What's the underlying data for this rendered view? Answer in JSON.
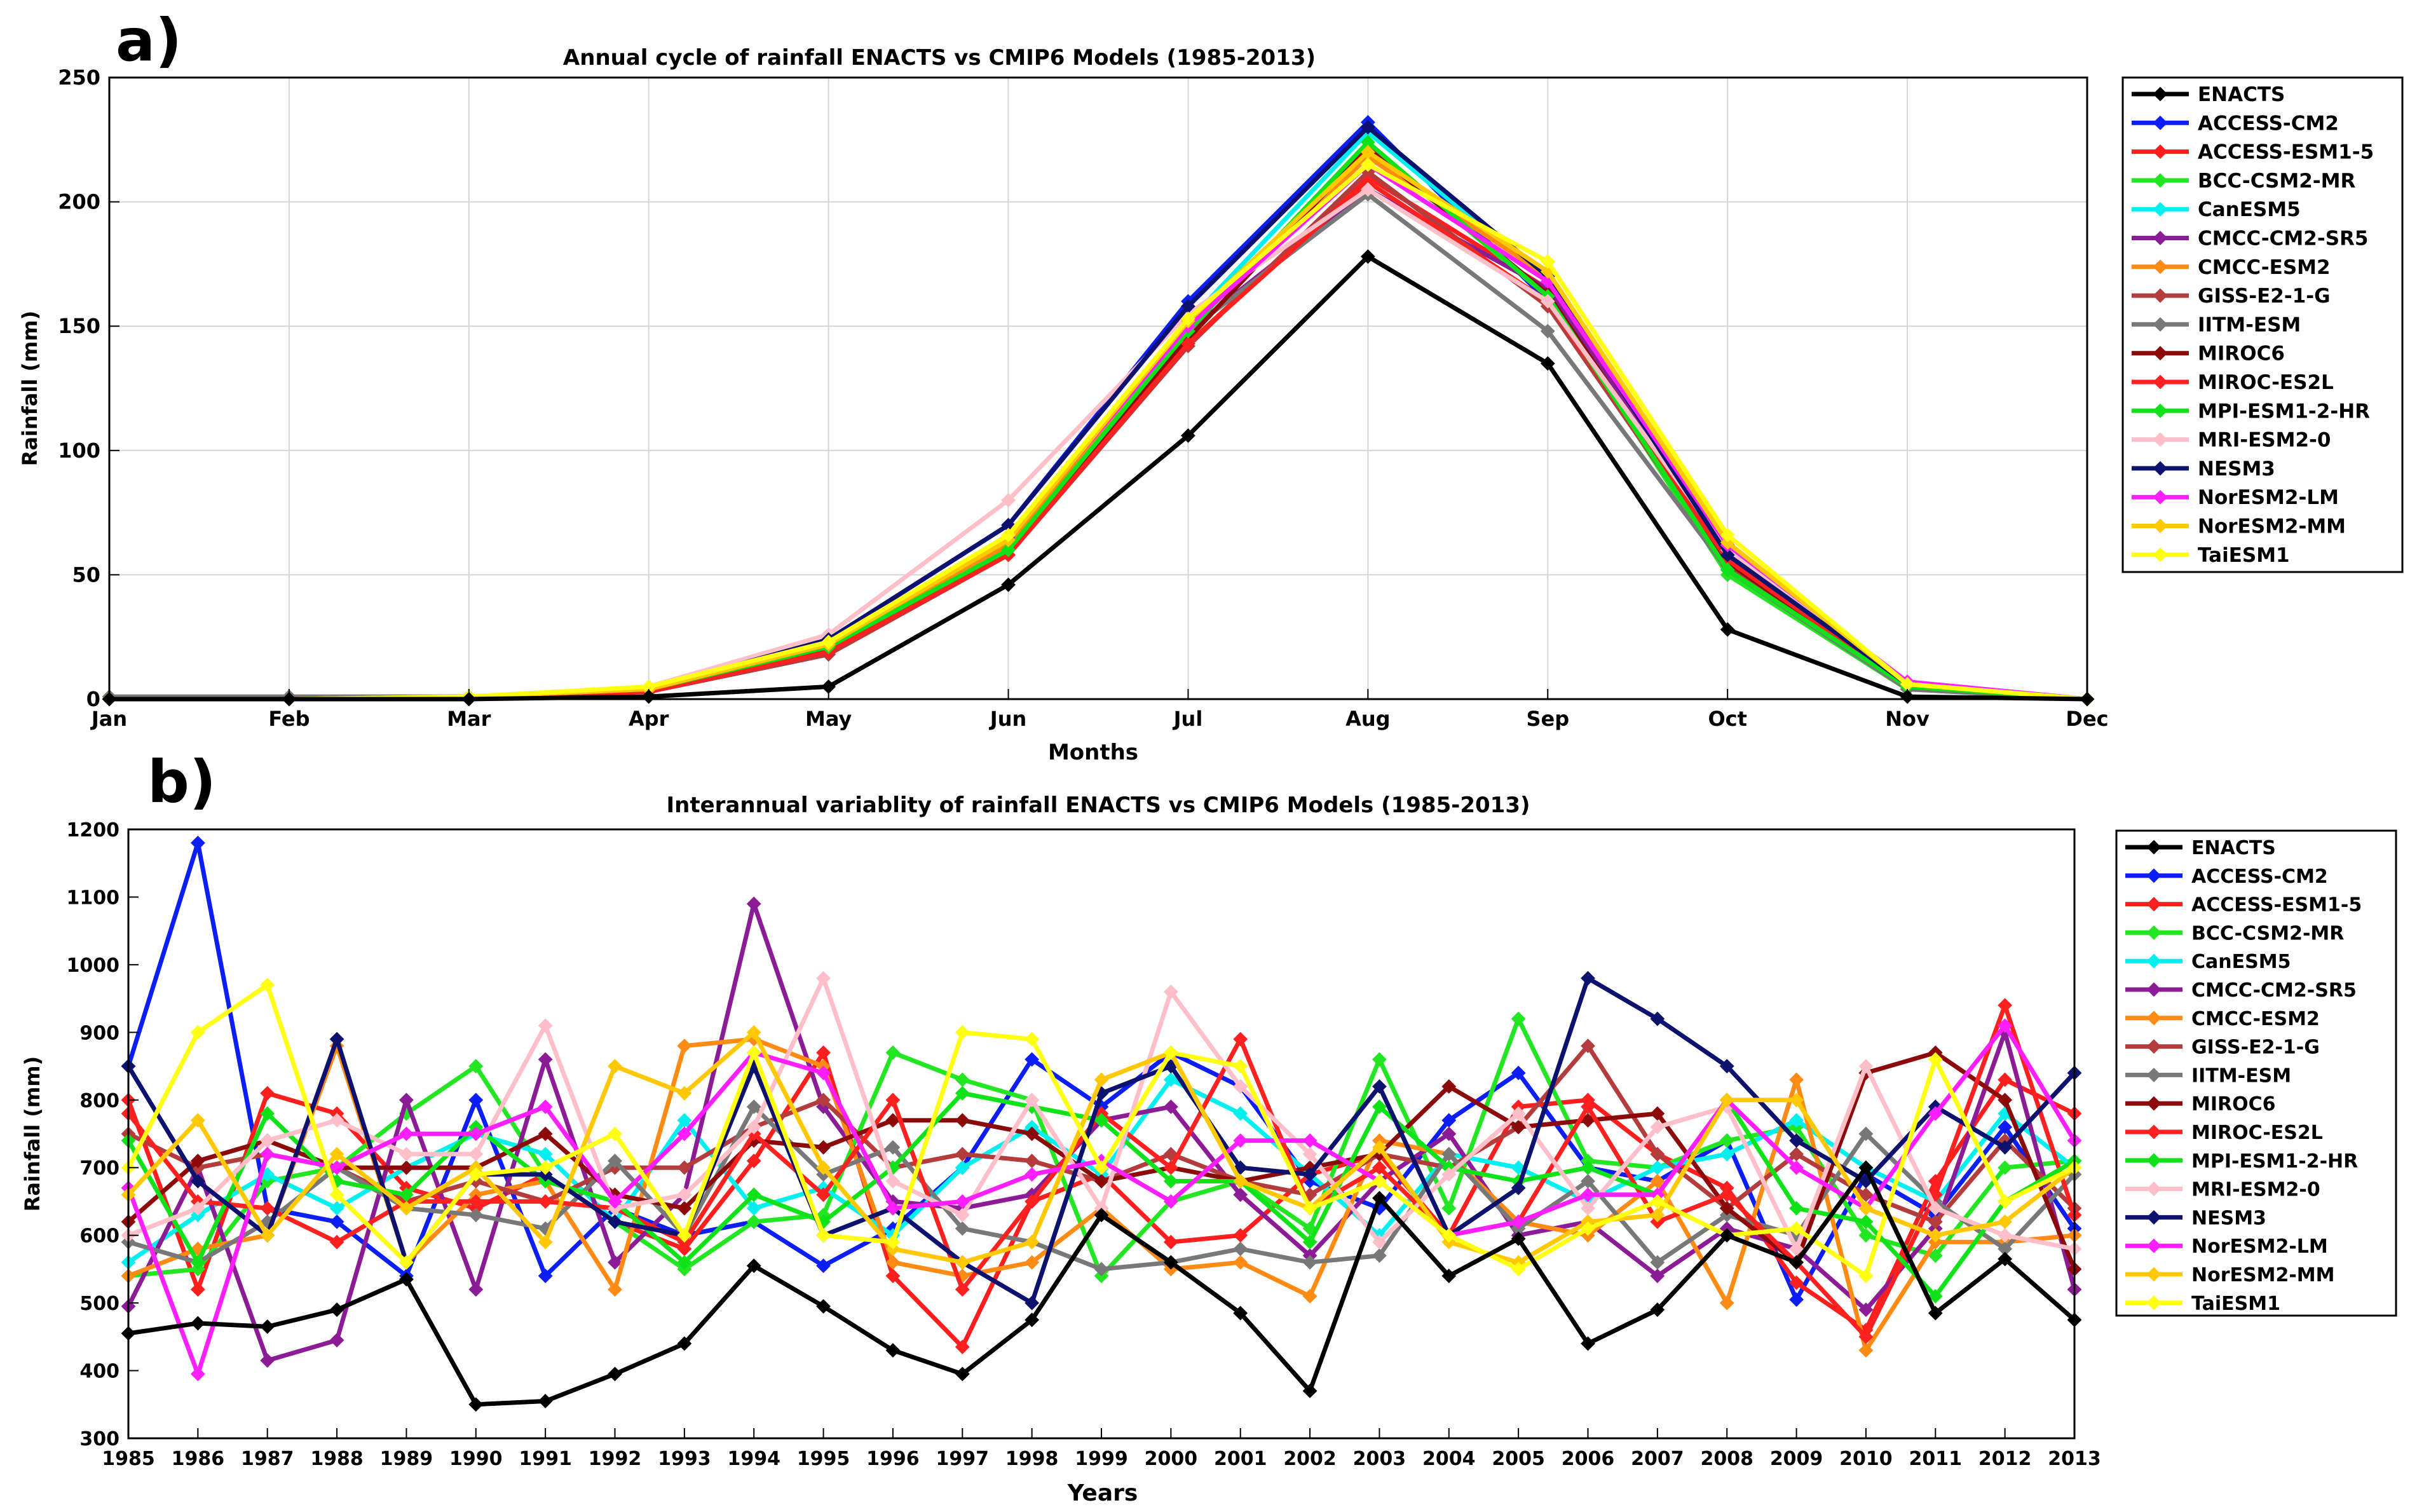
{
  "colors": {
    "ENACTS": "#000000",
    "ACCESS-CM2": "#0a1ef5",
    "ACCESS-ESM1-5": "#ff1e1e",
    "BCC-CSM2-MR": "#22e622",
    "CanESM5": "#00f0f0",
    "CMCC-CM2-SR5": "#8c1c96",
    "CMCC-ESM2": "#ff8a14",
    "GISS-E2-1-G": "#b43c3c",
    "IITM-ESM": "#787878",
    "MIROC6": "#8c0a0a",
    "MIROC-ES2L": "#ff2020",
    "MPI-ESM1-2-HR": "#10e21a",
    "MRI-ESM2-0": "#ffbfc8",
    "NESM3": "#0c126e",
    "NorESM2-LM": "#ff1eff",
    "NorESM2-MM": "#ffc800",
    "TaiESM1": "#ffff10"
  },
  "chart_data": [
    {
      "panel_label": "a)",
      "type": "line",
      "title": "Annual cycle of rainfall ENACTS vs CMIP6 Models (1985-2013)",
      "xlabel": "Months",
      "ylabel": "Rainfall (mm)",
      "ylim": [
        0,
        250
      ],
      "yticks": [
        0,
        50,
        100,
        150,
        200,
        250
      ],
      "grid": true,
      "legend": "outside-right",
      "categories": [
        "Jan",
        "Feb",
        "Mar",
        "Apr",
        "May",
        "Jun",
        "Jul",
        "Aug",
        "Sep",
        "Oct",
        "Nov",
        "Dec"
      ],
      "series": [
        {
          "name": "ENACTS",
          "values": [
            0,
            0,
            0,
            1,
            5,
            46,
            106,
            178,
            135,
            28,
            1,
            0
          ]
        },
        {
          "name": "ACCESS-CM2",
          "values": [
            0,
            0,
            1,
            3,
            24,
            70,
            160,
            232,
            160,
            57,
            6,
            0
          ]
        },
        {
          "name": "ACCESS-ESM1-5",
          "values": [
            0,
            0,
            0,
            3,
            19,
            60,
            143,
            210,
            165,
            55,
            5,
            0
          ]
        },
        {
          "name": "BCC-CSM2-MR",
          "values": [
            0,
            0,
            1,
            3,
            20,
            58,
            145,
            222,
            162,
            50,
            4,
            0
          ]
        },
        {
          "name": "CanESM5",
          "values": [
            0,
            0,
            1,
            4,
            22,
            62,
            152,
            228,
            168,
            58,
            6,
            0
          ]
        },
        {
          "name": "CMCC-CM2-SR5",
          "values": [
            0,
            0,
            1,
            3,
            18,
            62,
            148,
            205,
            165,
            60,
            6,
            0
          ]
        },
        {
          "name": "CMCC-ESM2",
          "values": [
            0,
            0,
            1,
            4,
            22,
            62,
            150,
            218,
            170,
            62,
            5,
            0
          ]
        },
        {
          "name": "GISS-E2-1-G",
          "values": [
            0,
            0,
            1,
            3,
            18,
            58,
            142,
            212,
            158,
            54,
            5,
            0
          ]
        },
        {
          "name": "IITM-ESM",
          "values": [
            1,
            1,
            1,
            3,
            20,
            60,
            148,
            203,
            148,
            52,
            4,
            0
          ]
        },
        {
          "name": "MIROC6",
          "values": [
            0,
            0,
            1,
            3,
            20,
            60,
            145,
            222,
            163,
            55,
            5,
            0
          ]
        },
        {
          "name": "MIROC-ES2L",
          "values": [
            0,
            0,
            0,
            3,
            19,
            58,
            143,
            208,
            160,
            56,
            5,
            0
          ]
        },
        {
          "name": "MPI-ESM1-2-HR",
          "values": [
            0,
            0,
            1,
            4,
            21,
            60,
            148,
            224,
            162,
            52,
            5,
            0
          ]
        },
        {
          "name": "MRI-ESM2-0",
          "values": [
            0,
            0,
            1,
            5,
            26,
            80,
            155,
            205,
            160,
            60,
            6,
            0
          ]
        },
        {
          "name": "NESM3",
          "values": [
            0,
            0,
            1,
            4,
            24,
            70,
            158,
            230,
            170,
            58,
            6,
            0
          ]
        },
        {
          "name": "NorESM2-LM",
          "values": [
            0,
            0,
            1,
            4,
            22,
            65,
            150,
            215,
            168,
            62,
            7,
            0
          ]
        },
        {
          "name": "NorESM2-MM",
          "values": [
            0,
            0,
            1,
            4,
            22,
            64,
            152,
            220,
            172,
            63,
            6,
            0
          ]
        },
        {
          "name": "TaiESM1",
          "values": [
            0,
            0,
            1,
            5,
            23,
            66,
            153,
            215,
            176,
            66,
            6,
            0
          ]
        }
      ]
    },
    {
      "panel_label": "b)",
      "type": "line",
      "title": "Interannual variablity of rainfall ENACTS vs CMIP6 Models (1985-2013)",
      "xlabel": "Years",
      "ylabel": "Rainfall (mm)",
      "ylim": [
        300,
        1200
      ],
      "yticks": [
        300,
        400,
        500,
        600,
        700,
        800,
        900,
        1000,
        1100,
        1200
      ],
      "grid": false,
      "legend": "outside-right",
      "categories": [
        "1985",
        "1986",
        "1987",
        "1988",
        "1989",
        "1990",
        "1991",
        "1992",
        "1993",
        "1994",
        "1995",
        "1996",
        "1997",
        "1998",
        "1999",
        "2000",
        "2001",
        "2002",
        "2003",
        "2004",
        "2005",
        "2006",
        "2007",
        "2008",
        "2009",
        "2010",
        "2011",
        "2012",
        "2013"
      ],
      "series": [
        {
          "name": "ENACTS",
          "values": [
            455,
            470,
            465,
            490,
            535,
            350,
            355,
            395,
            440,
            555,
            495,
            430,
            395,
            475,
            630,
            560,
            485,
            370,
            655,
            540,
            595,
            440,
            490,
            600,
            560,
            700,
            485,
            565,
            475
          ]
        },
        {
          "name": "ACCESS-CM2",
          "values": [
            850,
            1180,
            640,
            620,
            540,
            800,
            540,
            640,
            600,
            620,
            555,
            610,
            700,
            860,
            790,
            870,
            820,
            680,
            640,
            770,
            840,
            700,
            680,
            740,
            505,
            690,
            630,
            760,
            610
          ]
        },
        {
          "name": "ACCESS-ESM1-5",
          "values": [
            800,
            520,
            810,
            780,
            670,
            640,
            690,
            620,
            580,
            710,
            870,
            540,
            435,
            650,
            690,
            590,
            600,
            690,
            720,
            600,
            790,
            800,
            720,
            670,
            530,
            460,
            680,
            830,
            780
          ]
        },
        {
          "name": "BCC-CSM2-MR",
          "values": [
            540,
            550,
            680,
            700,
            780,
            850,
            690,
            620,
            550,
            620,
            630,
            870,
            830,
            800,
            540,
            650,
            680,
            610,
            860,
            640,
            920,
            710,
            700,
            740,
            760,
            600,
            570,
            700,
            710
          ]
        },
        {
          "name": "CanESM5",
          "values": [
            560,
            630,
            690,
            640,
            700,
            750,
            720,
            620,
            770,
            640,
            670,
            600,
            700,
            760,
            690,
            830,
            780,
            690,
            600,
            720,
            700,
            650,
            700,
            720,
            770,
            700,
            650,
            780,
            700
          ]
        },
        {
          "name": "CMCC-CM2-SR5",
          "values": [
            495,
            700,
            415,
            445,
            800,
            520,
            860,
            560,
            660,
            1090,
            790,
            650,
            640,
            660,
            770,
            790,
            660,
            570,
            680,
            750,
            600,
            620,
            540,
            610,
            580,
            490,
            610,
            900,
            520
          ]
        },
        {
          "name": "CMCC-ESM2",
          "values": [
            540,
            580,
            600,
            880,
            560,
            660,
            680,
            520,
            880,
            890,
            850,
            560,
            540,
            560,
            640,
            550,
            560,
            510,
            740,
            720,
            620,
            600,
            680,
            500,
            830,
            430,
            590,
            590,
            600
          ]
        },
        {
          "name": "GISS-E2-1-G",
          "values": [
            750,
            700,
            720,
            700,
            650,
            680,
            650,
            700,
            700,
            760,
            800,
            700,
            720,
            710,
            680,
            720,
            680,
            660,
            720,
            700,
            760,
            880,
            720,
            640,
            720,
            660,
            620,
            740,
            640
          ]
        },
        {
          "name": "IITM-ESM",
          "values": [
            590,
            560,
            620,
            700,
            640,
            630,
            610,
            710,
            600,
            790,
            690,
            730,
            610,
            590,
            550,
            560,
            580,
            560,
            570,
            720,
            610,
            680,
            560,
            630,
            600,
            750,
            650,
            580,
            690
          ]
        },
        {
          "name": "MIROC6",
          "values": [
            620,
            710,
            740,
            700,
            700,
            700,
            750,
            660,
            640,
            740,
            730,
            770,
            770,
            750,
            680,
            700,
            680,
            700,
            720,
            820,
            760,
            770,
            780,
            640,
            560,
            840,
            870,
            800,
            550
          ]
        },
        {
          "name": "MIROC-ES2L",
          "values": [
            780,
            650,
            640,
            590,
            650,
            650,
            650,
            640,
            590,
            750,
            660,
            800,
            520,
            650,
            780,
            700,
            890,
            640,
            700,
            600,
            620,
            790,
            620,
            660,
            560,
            450,
            660,
            940,
            630
          ]
        },
        {
          "name": "MPI-ESM1-2-HR",
          "values": [
            740,
            560,
            780,
            680,
            660,
            760,
            680,
            650,
            560,
            660,
            620,
            700,
            810,
            790,
            770,
            680,
            680,
            590,
            790,
            700,
            680,
            700,
            660,
            800,
            640,
            620,
            510,
            650,
            710
          ]
        },
        {
          "name": "MRI-ESM2-0",
          "values": [
            600,
            640,
            740,
            770,
            720,
            720,
            910,
            640,
            660,
            760,
            980,
            680,
            630,
            800,
            640,
            960,
            820,
            720,
            590,
            690,
            780,
            640,
            760,
            790,
            580,
            850,
            640,
            600,
            580
          ]
        },
        {
          "name": "NESM3",
          "values": [
            850,
            680,
            600,
            890,
            560,
            690,
            690,
            620,
            600,
            850,
            600,
            640,
            560,
            500,
            810,
            850,
            700,
            690,
            820,
            600,
            670,
            980,
            920,
            850,
            740,
            680,
            790,
            730,
            840
          ]
        },
        {
          "name": "NorESM2-LM",
          "values": [
            670,
            395,
            720,
            700,
            750,
            750,
            790,
            650,
            750,
            870,
            840,
            640,
            650,
            690,
            710,
            650,
            740,
            740,
            680,
            600,
            620,
            660,
            660,
            800,
            700,
            640,
            780,
            910,
            740
          ]
        },
        {
          "name": "NorESM2-MM",
          "values": [
            660,
            770,
            600,
            720,
            640,
            700,
            590,
            850,
            810,
            900,
            700,
            580,
            560,
            590,
            830,
            870,
            680,
            640,
            730,
            590,
            560,
            620,
            630,
            800,
            800,
            640,
            600,
            620,
            700
          ]
        },
        {
          "name": "TaiESM1",
          "values": [
            700,
            900,
            970,
            660,
            560,
            690,
            700,
            750,
            600,
            870,
            600,
            590,
            900,
            890,
            700,
            870,
            850,
            640,
            680,
            600,
            550,
            610,
            650,
            600,
            610,
            540,
            860,
            650,
            700
          ]
        }
      ]
    }
  ]
}
